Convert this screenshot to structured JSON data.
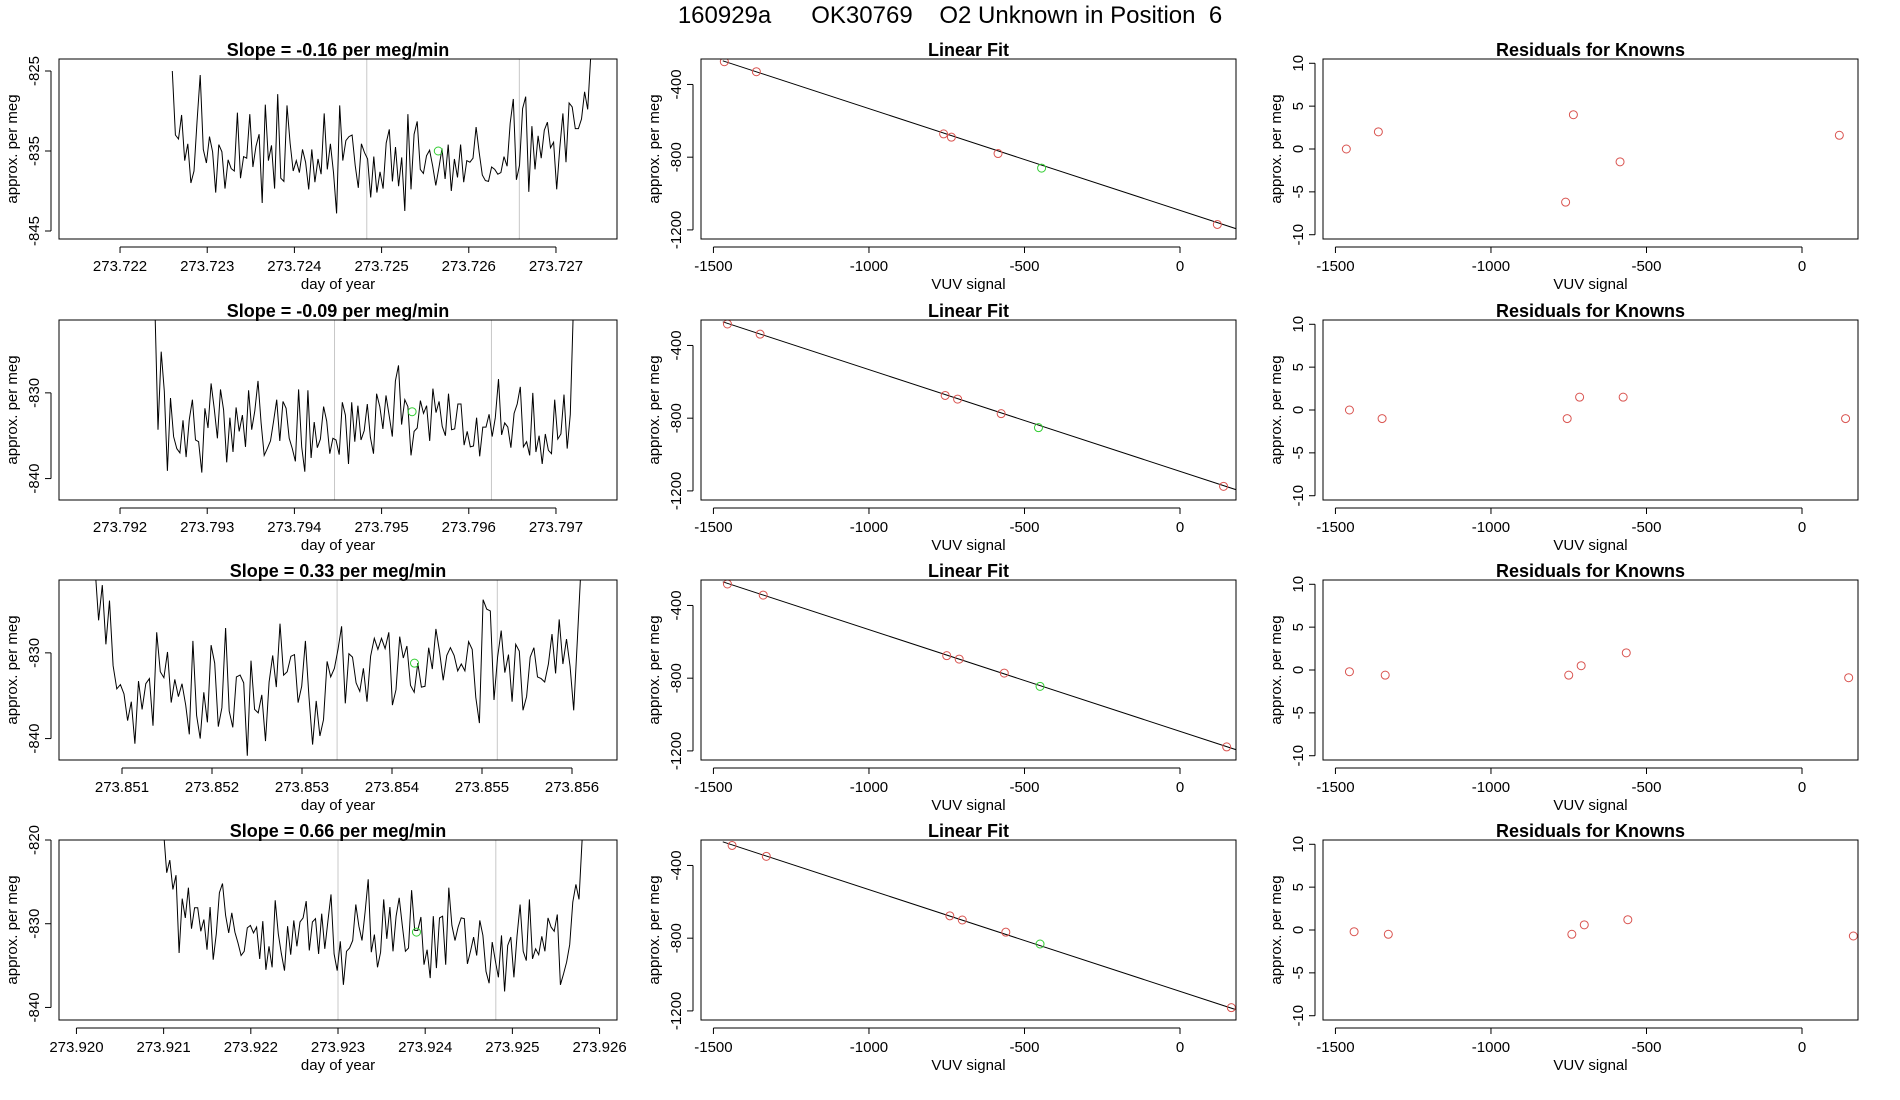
{
  "header": {
    "title": "160929a      OK30769    O2 Unknown in Position  6"
  },
  "colors": {
    "trace": "#000000",
    "known": "#d9534f",
    "unknown": "#32cd32",
    "marker": "#c8c8c8",
    "axis": "#000000"
  },
  "chart_data": [
    {
      "id": "r1",
      "type": "line",
      "title": "Slope =  -0.16  per meg/min",
      "slope": -0.16,
      "xlabel": "day of year",
      "ylabel": "approx. per meg",
      "xlim": [
        273.7213,
        273.7277
      ],
      "ylim": [
        -846,
        -823.5
      ],
      "xticks": [
        "273.722",
        "273.723",
        "273.724",
        "273.725",
        "273.726",
        "273.727"
      ],
      "yticks": [
        "-845",
        "-835",
        "-825"
      ],
      "trace_x_range": [
        273.7226,
        273.7274
      ],
      "trace_y": [
        -825.0,
        -833.0,
        -833.5,
        -830.5,
        -836.2,
        -834.1,
        -839.0,
        -837.5,
        -831.2,
        -825.5,
        -834.8,
        -836.5,
        -833.2,
        -835.1,
        -840.2,
        -834.2,
        -835.1,
        -839.7,
        -836.1,
        -837.2,
        -837.5,
        -830.2,
        -838.4,
        -835.7,
        -835.9,
        -830.4,
        -837.0,
        -834.4,
        -832.9,
        -841.5,
        -829.2,
        -836.2,
        -834.3,
        -839.7,
        -827.9,
        -838.4,
        -838.8,
        -829.3,
        -834.0,
        -837.5,
        -836.2,
        -837.7,
        -834.8,
        -836.4,
        -839.8,
        -834.8,
        -838.9,
        -836.0,
        -837.9,
        -830.3,
        -837.3,
        -834.1,
        -837.7,
        -842.8,
        -829.3,
        -836.2,
        -833.7,
        -833.2,
        -833.0,
        -836.8,
        -839.6,
        -834.1,
        -835.2,
        -836.0,
        -840.8,
        -835.7,
        -840.2,
        -837.6,
        -839.7,
        -834.0,
        -832.3,
        -838.8,
        -834.5,
        -839.4,
        -835.8,
        -842.5,
        -830.4,
        -839.8,
        -832.9,
        -831.3,
        -837.3,
        -837.8,
        -835.6,
        -834.9,
        -836.9,
        -839.3,
        -837.1,
        -834.7,
        -838.5,
        -834.2,
        -840.0,
        -836.0,
        -838.3,
        -834.2,
        -838.9,
        -836.2,
        -836.4,
        -835.9,
        -832.0,
        -835.2,
        -838.0,
        -838.7,
        -838.8,
        -837.0,
        -837.3,
        -837.9,
        -837.7,
        -835.7,
        -836.9,
        -831.5,
        -828.5,
        -838.6,
        -836.8,
        -829.7,
        -828.2,
        -840.1,
        -831.9,
        -837.3,
        -833.1,
        -835.9,
        -832.4,
        -831.4,
        -834.6,
        -833.9,
        -839.8,
        -834.6,
        -830.3,
        -836.4,
        -829.0,
        -829.5,
        -832.2,
        -832.2,
        -831.0,
        -827.6,
        -829.8,
        -823.0
      ],
      "point": {
        "x": 273.72565,
        "y": -835.0
      },
      "vlines": [
        273.72483,
        273.72658
      ]
    },
    {
      "id": "r2",
      "type": "line",
      "title": "Slope =  -0.09  per meg/min",
      "slope": -0.09,
      "xlabel": "day of year",
      "ylabel": "approx. per meg",
      "xlim": [
        273.7913,
        273.7977
      ],
      "ylim": [
        -842.5,
        -821.5
      ],
      "xticks": [
        "273.792",
        "273.793",
        "273.794",
        "273.795",
        "273.796",
        "273.797"
      ],
      "yticks": [
        "-840",
        "-830"
      ],
      "trace_x_range": [
        273.7924,
        273.7972
      ],
      "trace_y": [
        -820.0,
        -834.3,
        -825.2,
        -829.8,
        -839.1,
        -830.6,
        -835.1,
        -836.5,
        -837.0,
        -833.2,
        -837.5,
        -833.1,
        -830.8,
        -835.5,
        -835.7,
        -839.3,
        -831.8,
        -834.1,
        -828.9,
        -831.8,
        -835.3,
        -829.6,
        -832.0,
        -838.1,
        -832.9,
        -836.9,
        -831.7,
        -834.5,
        -832.6,
        -836.3,
        -829.7,
        -834.3,
        -832.1,
        -828.6,
        -833.5,
        -837.3,
        -836.5,
        -835.6,
        -833.3,
        -830.8,
        -835.6,
        -831.0,
        -831.8,
        -835.3,
        -836.5,
        -838.0,
        -829.6,
        -836.3,
        -839.2,
        -829.7,
        -837.6,
        -833.4,
        -836.4,
        -835.4,
        -831.6,
        -833.3,
        -837.1,
        -835.3,
        -835.5,
        -837.2,
        -831.1,
        -832.6,
        -838.3,
        -831.1,
        -835.7,
        -831.5,
        -835.5,
        -834.4,
        -831.3,
        -835.2,
        -837.1,
        -830.1,
        -831.6,
        -834.2,
        -830.3,
        -832.6,
        -835.1,
        -828.6,
        -826.8,
        -833.7,
        -830.8,
        -831.6,
        -837.3,
        -834.5,
        -834.1,
        -830.9,
        -832.4,
        -831.5,
        -835.6,
        -829.5,
        -832.3,
        -831.0,
        -833.9,
        -835.0,
        -830.1,
        -834.3,
        -834.2,
        -831.3,
        -831.3,
        -836.1,
        -834.5,
        -836.3,
        -836.2,
        -832.9,
        -837.4,
        -834.0,
        -834.0,
        -832.5,
        -835.1,
        -832.9,
        -828.4,
        -834.9,
        -833.5,
        -834.0,
        -836.4,
        -832.4,
        -831.3,
        -829.3,
        -836.3,
        -835.7,
        -837.3,
        -830.0,
        -836.9,
        -835.0,
        -838.3,
        -834.8,
        -836.7,
        -837.1,
        -830.8,
        -835.4,
        -834.8,
        -830.2,
        -836.5,
        -832.5,
        -820.0
      ],
      "point": {
        "x": 273.79535,
        "y": -832.2
      },
      "vlines": [
        273.79446,
        273.79626
      ]
    },
    {
      "id": "r3",
      "type": "line",
      "title": "Slope =  0.33  per meg/min",
      "slope": 0.33,
      "xlabel": "day of year",
      "ylabel": "approx. per meg",
      "xlim": [
        273.8503,
        273.8565
      ],
      "ylim": [
        -842.5,
        -821.5
      ],
      "xticks": [
        "273.851",
        "273.852",
        "273.853",
        "273.854",
        "273.855",
        "273.856"
      ],
      "yticks": [
        "-840",
        "-830"
      ],
      "trace_x_range": [
        273.8507,
        273.8561
      ],
      "trace_y": [
        -820.0,
        -826.2,
        -822.1,
        -829.0,
        -823.9,
        -831.5,
        -834.2,
        -833.7,
        -834.8,
        -837.9,
        -835.7,
        -840.6,
        -833.3,
        -836.6,
        -833.6,
        -833.0,
        -838.5,
        -827.6,
        -832.2,
        -832.9,
        -829.9,
        -835.8,
        -833.1,
        -835.1,
        -833.6,
        -836.1,
        -839.5,
        -828.6,
        -837.3,
        -840.0,
        -834.6,
        -838.1,
        -829.1,
        -831.2,
        -838.6,
        -836.4,
        -827.1,
        -836.8,
        -838.7,
        -832.8,
        -832.6,
        -833.5,
        -842.0,
        -830.9,
        -836.6,
        -837.0,
        -834.9,
        -840.3,
        -833.4,
        -830.3,
        -834.0,
        -826.6,
        -832.6,
        -832.2,
        -830.4,
        -830.2,
        -835.8,
        -833.9,
        -828.6,
        -835.2,
        -840.7,
        -835.6,
        -839.7,
        -837.8,
        -831.0,
        -832.8,
        -831.8,
        -829.6,
        -826.9,
        -835.9,
        -830.1,
        -830.5,
        -833.5,
        -834.5,
        -831.8,
        -835.7,
        -830.4,
        -828.3,
        -829.6,
        -828.3,
        -829.5,
        -827.6,
        -836.1,
        -834.3,
        -828.1,
        -830.6,
        -829.2,
        -833.8,
        -834.6,
        -831.2,
        -834.0,
        -833.9,
        -829.4,
        -831.9,
        -827.2,
        -829.9,
        -833.2,
        -830.3,
        -829.4,
        -830.3,
        -832.1,
        -831.3,
        -832.1,
        -828.7,
        -829.6,
        -835.2,
        -838.2,
        -823.8,
        -824.9,
        -825.1,
        -835.5,
        -830.5,
        -827.4,
        -832.3,
        -830.2,
        -835.7,
        -829.0,
        -829.8,
        -836.7,
        -835.1,
        -830.5,
        -829.4,
        -832.8,
        -833.0,
        -833.4,
        -831.3,
        -827.8,
        -832.4,
        -826.1,
        -831.3,
        -828.4,
        -831.6,
        -836.7,
        -828.4,
        -820.0
      ],
      "point": {
        "x": 273.85425,
        "y": -831.2
      },
      "vlines": [
        273.85339,
        273.85517
      ]
    },
    {
      "id": "r4",
      "type": "line",
      "title": "Slope =  0.66  per meg/min",
      "slope": 0.66,
      "xlabel": "day of year",
      "ylabel": "approx. per meg",
      "xlim": [
        273.9198,
        273.9262
      ],
      "ylim": [
        -841.5,
        -820
      ],
      "xticks": [
        "273.920",
        "273.921",
        "273.922",
        "273.923",
        "273.924",
        "273.925",
        "273.926"
      ],
      "yticks": [
        "-840",
        "-830",
        "-820"
      ],
      "trace_x_range": [
        273.921,
        273.9258
      ],
      "trace_y": [
        -819.0,
        -823.9,
        -822.4,
        -825.9,
        -824.2,
        -833.5,
        -827.0,
        -829.3,
        -825.7,
        -830.6,
        -828.1,
        -828.1,
        -830.9,
        -829.5,
        -833.1,
        -828.0,
        -834.3,
        -831.2,
        -826.3,
        -825.2,
        -829.0,
        -831.1,
        -828.7,
        -831.0,
        -832.3,
        -833.8,
        -833.3,
        -830.5,
        -830.2,
        -831.1,
        -830.4,
        -834.2,
        -829.7,
        -835.5,
        -832.7,
        -835.2,
        -827.2,
        -831.2,
        -833.6,
        -835.6,
        -830.3,
        -833.7,
        -829.6,
        -832.7,
        -829.8,
        -829.3,
        -827.3,
        -833.2,
        -829.8,
        -829.4,
        -833.6,
        -828.8,
        -833.0,
        -829.7,
        -826.5,
        -833.6,
        -835.6,
        -832.1,
        -837.3,
        -833.3,
        -832.9,
        -832.0,
        -827.7,
        -830.3,
        -832.0,
        -828.6,
        -824.7,
        -833.4,
        -831.3,
        -835.2,
        -833.4,
        -827.1,
        -831.8,
        -828.0,
        -833.3,
        -829.1,
        -826.9,
        -830.2,
        -833.3,
        -832.9,
        -826.0,
        -830.8,
        -830.8,
        -829.2,
        -834.9,
        -833.1,
        -836.5,
        -829.1,
        -835.3,
        -829.3,
        -829.1,
        -834.9,
        -825.7,
        -830.2,
        -832.0,
        -830.4,
        -829.3,
        -829.4,
        -834.8,
        -833.3,
        -831.6,
        -833.8,
        -829.6,
        -831.4,
        -835.7,
        -837.1,
        -832.2,
        -834.4,
        -836.4,
        -831.4,
        -838.1,
        -832.6,
        -831.6,
        -836.4,
        -831.5,
        -827.7,
        -833.3,
        -834.4,
        -827.1,
        -834.2,
        -833.0,
        -833.7,
        -831.5,
        -833.3,
        -829.3,
        -830.4,
        -830.9,
        -828.9,
        -837.3,
        -836.0,
        -834.6,
        -832.5,
        -827.4,
        -825.3,
        -827.1,
        -820.0
      ],
      "point": {
        "x": 273.9239,
        "y": -831.0
      },
      "vlines": [
        273.923,
        273.92481
      ]
    },
    {
      "id": "f1",
      "type": "scatter",
      "title": "Linear Fit",
      "xlabel": "VUV signal",
      "ylabel": "approx. per meg",
      "xlim": [
        -1540,
        180
      ],
      "ylim": [
        -1250,
        -260
      ],
      "xticks": [
        "-1500",
        "-1000",
        "-500",
        "0"
      ],
      "yticks": [
        "-1200",
        "-800",
        "-400"
      ],
      "fit_line": {
        "x0": -1470,
        "y0": -270,
        "x1": 185,
        "y1": -1196
      },
      "knowns": [
        {
          "x": -1465,
          "y": -275
        },
        {
          "x": -1362,
          "y": -330
        },
        {
          "x": -760,
          "y": -672
        },
        {
          "x": -735,
          "y": -690
        },
        {
          "x": -585,
          "y": -780
        },
        {
          "x": 120,
          "y": -1170
        }
      ],
      "unknown": {
        "x": -445,
        "y": -860
      }
    },
    {
      "id": "f2",
      "type": "scatter",
      "title": "Linear Fit",
      "xlabel": "VUV signal",
      "ylabel": "approx. per meg",
      "xlim": [
        -1540,
        180
      ],
      "ylim": [
        -1250,
        -260
      ],
      "xticks": [
        "-1500",
        "-1000",
        "-500",
        "0"
      ],
      "yticks": [
        "-1200",
        "-800",
        "-400"
      ],
      "fit_line": {
        "x0": -1470,
        "y0": -270,
        "x1": 185,
        "y1": -1196
      },
      "knowns": [
        {
          "x": -1455,
          "y": -282
        },
        {
          "x": -1350,
          "y": -338
        },
        {
          "x": -755,
          "y": -675
        },
        {
          "x": -715,
          "y": -695
        },
        {
          "x": -575,
          "y": -775
        },
        {
          "x": 140,
          "y": -1175
        }
      ],
      "unknown": {
        "x": -455,
        "y": -852
      }
    },
    {
      "id": "f3",
      "type": "scatter",
      "title": "Linear Fit",
      "xlabel": "VUV signal",
      "ylabel": "approx. per meg",
      "xlim": [
        -1540,
        180
      ],
      "ylim": [
        -1250,
        -260
      ],
      "xticks": [
        "-1500",
        "-1000",
        "-500",
        "0"
      ],
      "yticks": [
        "-1200",
        "-800",
        "-400"
      ],
      "fit_line": {
        "x0": -1470,
        "y0": -270,
        "x1": 185,
        "y1": -1196
      },
      "knowns": [
        {
          "x": -1455,
          "y": -282
        },
        {
          "x": -1340,
          "y": -343
        },
        {
          "x": -750,
          "y": -676
        },
        {
          "x": -710,
          "y": -695
        },
        {
          "x": -565,
          "y": -772
        },
        {
          "x": 150,
          "y": -1178
        }
      ],
      "unknown": {
        "x": -450,
        "y": -845
      }
    },
    {
      "id": "f4",
      "type": "scatter",
      "title": "Linear Fit",
      "xlabel": "VUV signal",
      "ylabel": "approx. per meg",
      "xlim": [
        -1540,
        180
      ],
      "ylim": [
        -1250,
        -260
      ],
      "xticks": [
        "-1500",
        "-1000",
        "-500",
        "0"
      ],
      "yticks": [
        "-1200",
        "-800",
        "-400"
      ],
      "fit_line": {
        "x0": -1470,
        "y0": -270,
        "x1": 185,
        "y1": -1196
      },
      "knowns": [
        {
          "x": -1440,
          "y": -290
        },
        {
          "x": -1330,
          "y": -350
        },
        {
          "x": -740,
          "y": -677
        },
        {
          "x": -700,
          "y": -700
        },
        {
          "x": -560,
          "y": -767
        },
        {
          "x": 165,
          "y": -1182
        }
      ],
      "unknown": {
        "x": -450,
        "y": -832
      }
    },
    {
      "id": "res1",
      "type": "scatter",
      "title": "Residuals for Knowns",
      "xlabel": "VUV signal",
      "ylabel": "approx. per meg",
      "xlim": [
        -1540,
        180
      ],
      "ylim": [
        -10.5,
        10.5
      ],
      "xticks": [
        "-1500",
        "-1000",
        "-500",
        "0"
      ],
      "yticks": [
        "-10",
        "-5",
        "0",
        "5",
        "10"
      ],
      "points": [
        {
          "x": -1465,
          "y": 0
        },
        {
          "x": -1362,
          "y": 2
        },
        {
          "x": -760,
          "y": -6.2
        },
        {
          "x": -735,
          "y": 4
        },
        {
          "x": -585,
          "y": -1.5
        },
        {
          "x": 120,
          "y": 1.6
        }
      ]
    },
    {
      "id": "res2",
      "type": "scatter",
      "title": "Residuals for Knowns",
      "xlabel": "VUV signal",
      "ylabel": "approx. per meg",
      "xlim": [
        -1540,
        180
      ],
      "ylim": [
        -10.5,
        10.5
      ],
      "xticks": [
        "-1500",
        "-1000",
        "-500",
        "0"
      ],
      "yticks": [
        "-10",
        "-5",
        "0",
        "5",
        "10"
      ],
      "points": [
        {
          "x": -1455,
          "y": 0
        },
        {
          "x": -1350,
          "y": -1
        },
        {
          "x": -755,
          "y": -1
        },
        {
          "x": -715,
          "y": 1.5
        },
        {
          "x": -575,
          "y": 1.5
        },
        {
          "x": 140,
          "y": -1
        }
      ]
    },
    {
      "id": "res3",
      "type": "scatter",
      "title": "Residuals for Knowns",
      "xlabel": "VUV signal",
      "ylabel": "approx. per meg",
      "xlim": [
        -1540,
        180
      ],
      "ylim": [
        -10.5,
        10.5
      ],
      "xticks": [
        "-1500",
        "-1000",
        "-500",
        "0"
      ],
      "yticks": [
        "-10",
        "-5",
        "0",
        "5",
        "10"
      ],
      "points": [
        {
          "x": -1455,
          "y": -0.2
        },
        {
          "x": -1340,
          "y": -0.6
        },
        {
          "x": -750,
          "y": -0.6
        },
        {
          "x": -710,
          "y": 0.5
        },
        {
          "x": -565,
          "y": 2
        },
        {
          "x": 150,
          "y": -0.9
        }
      ]
    },
    {
      "id": "res4",
      "type": "scatter",
      "title": "Residuals for Knowns",
      "xlabel": "VUV signal",
      "ylabel": "approx. per meg",
      "xlim": [
        -1540,
        180
      ],
      "ylim": [
        -10.5,
        10.5
      ],
      "xticks": [
        "-1500",
        "-1000",
        "-500",
        "0"
      ],
      "yticks": [
        "-10",
        "-5",
        "0",
        "5",
        "10"
      ],
      "points": [
        {
          "x": -1440,
          "y": -0.2
        },
        {
          "x": -1330,
          "y": -0.5
        },
        {
          "x": -740,
          "y": -0.5
        },
        {
          "x": -700,
          "y": 0.6
        },
        {
          "x": -560,
          "y": 1.2
        },
        {
          "x": 165,
          "y": -0.7
        }
      ]
    }
  ]
}
